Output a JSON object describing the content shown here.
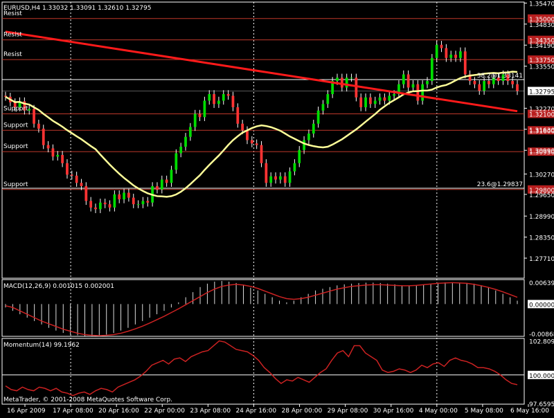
{
  "colors": {
    "background": "#000000",
    "frame": "#ffffff",
    "grid": "#ffffff",
    "bull": "#00dd00",
    "bear": "#ff3333",
    "wick": "#ffffff",
    "level_line": "#c0392b",
    "trendline": "#ff1a1a",
    "moving_average": "#ffff99",
    "macd_hist": "#dddddd",
    "macd_signal": "#cc2222",
    "momentum": "#cc2222",
    "label_text": "#ffffff",
    "level_label_bg": "#b81f1f",
    "current_price_bg": "#ffffff",
    "current_price_text": "#000000"
  },
  "chart_data": [
    {
      "type": "candlestick",
      "title": "EURUSD,H4  1.33032 1.33091 1.32610 1.32795",
      "ylim": [
        1.271,
        1.355
      ],
      "y_ticks": [
        "1.35470",
        "1.34830",
        "1.34190",
        "1.33550",
        "1.32795",
        "1.32270",
        "1.31630",
        "1.30990",
        "1.30270",
        "1.29650",
        "1.28990",
        "1.28350",
        "1.27710"
      ],
      "y_tick_values": [
        1.3547,
        1.3483,
        1.3419,
        1.3355,
        1.32795,
        1.3227,
        1.3163,
        1.3099,
        1.3027,
        1.2965,
        1.2899,
        1.2835,
        1.2771
      ],
      "current_price": "1.32795",
      "current_price_value": 1.32795,
      "horizontal_levels": [
        {
          "label": "Resist",
          "price_label": "1.35000",
          "value": 1.35
        },
        {
          "label": "Resist",
          "price_label": "1.34350",
          "value": 1.3435
        },
        {
          "label": "Resist",
          "price_label": "1.33750",
          "value": 1.3375
        },
        {
          "label": "Support",
          "price_label": "1.32100",
          "value": 1.321
        },
        {
          "label": "Support",
          "price_label": "1.31600",
          "value": 1.316
        },
        {
          "label": "Support",
          "price_label": "1.30950",
          "value": 1.3095
        },
        {
          "label": "Support",
          "price_label": "1.29800",
          "value": 1.298
        }
      ],
      "fib_levels": [
        {
          "label": "38.2@1.33141",
          "value": 1.33141
        },
        {
          "label": "23.6@1.29837",
          "value": 1.29837
        }
      ],
      "trendline": {
        "start": [
          0,
          1.346
        ],
        "end": [
          108,
          1.3218
        ]
      },
      "moving_average_label": "",
      "series": [
        {
          "name": "",
          "open": [
            1.3265,
            1.3262,
            1.3245,
            1.323,
            1.3248,
            1.322,
            1.3225,
            1.318,
            1.3165,
            1.3115,
            1.3105,
            1.308,
            1.3085,
            1.306,
            1.3025,
            1.3022,
            1.3,
            1.299,
            1.2945,
            1.2925,
            1.292,
            1.294,
            1.2935,
            1.2925,
            1.2965,
            1.295,
            1.297,
            1.2955,
            1.2935,
            1.2935,
            1.2945,
            1.294,
            1.299,
            1.298,
            1.301,
            1.3,
            1.304,
            1.309,
            1.311,
            1.314,
            1.317,
            1.321,
            1.32,
            1.325,
            1.327,
            1.324,
            1.325,
            1.327,
            1.3265,
            1.323,
            1.318,
            1.316,
            1.313,
            1.312,
            1.3115,
            1.306,
            1.3,
            1.302,
            1.301,
            1.302,
            1.3,
            1.3035,
            1.306,
            1.31,
            1.313,
            1.315,
            1.318,
            1.322,
            1.324,
            1.327,
            1.331,
            1.332,
            1.329,
            1.332,
            1.332,
            1.326,
            1.323,
            1.326,
            1.324,
            1.325,
            1.326,
            1.325,
            1.3265,
            1.327,
            1.33,
            1.333,
            1.329,
            1.33,
            1.325,
            1.33,
            1.331,
            1.338,
            1.342,
            1.341,
            1.338,
            1.339,
            1.338,
            1.34,
            1.333,
            1.331,
            1.33,
            1.328,
            1.331,
            1.33,
            1.332,
            1.331,
            1.333,
            1.331,
            1.33
          ],
          "close": [
            1.3262,
            1.3245,
            1.323,
            1.3248,
            1.322,
            1.3225,
            1.318,
            1.3165,
            1.3115,
            1.3105,
            1.308,
            1.3085,
            1.306,
            1.3025,
            1.3022,
            1.3,
            1.299,
            1.2945,
            1.2925,
            1.292,
            1.294,
            1.2935,
            1.2925,
            1.2965,
            1.295,
            1.297,
            1.2955,
            1.2935,
            1.2935,
            1.2945,
            1.294,
            1.299,
            1.298,
            1.301,
            1.3,
            1.304,
            1.309,
            1.311,
            1.314,
            1.317,
            1.321,
            1.32,
            1.325,
            1.327,
            1.324,
            1.325,
            1.327,
            1.3265,
            1.323,
            1.318,
            1.316,
            1.313,
            1.312,
            1.3115,
            1.306,
            1.3,
            1.302,
            1.301,
            1.302,
            1.3,
            1.3035,
            1.306,
            1.31,
            1.313,
            1.315,
            1.318,
            1.322,
            1.324,
            1.327,
            1.331,
            1.332,
            1.329,
            1.332,
            1.332,
            1.326,
            1.323,
            1.326,
            1.324,
            1.325,
            1.326,
            1.325,
            1.3265,
            1.327,
            1.33,
            1.333,
            1.329,
            1.33,
            1.325,
            1.33,
            1.331,
            1.338,
            1.342,
            1.341,
            1.338,
            1.339,
            1.338,
            1.34,
            1.333,
            1.331,
            1.33,
            1.328,
            1.331,
            1.33,
            1.332,
            1.331,
            1.333,
            1.331,
            1.33,
            1.32795
          ]
        }
      ]
    },
    {
      "type": "histogram",
      "title": "MACD(12,26,9) 0.001015 0.002001",
      "y_ticks": [
        "0.006391",
        "0.000000",
        "-0.008684"
      ],
      "y_tick_values": [
        0.006391,
        0.0,
        -0.008684
      ],
      "ylim": [
        -0.0095,
        0.0072
      ],
      "series": [
        {
          "name": "",
          "values": [
            -0.001,
            -0.002,
            -0.003,
            -0.004,
            -0.005,
            -0.006,
            -0.007,
            -0.0078,
            -0.0085,
            -0.009,
            -0.0092,
            -0.0094,
            -0.0094,
            -0.0093,
            -0.009,
            -0.0085,
            -0.0078,
            -0.007,
            -0.006,
            -0.005,
            -0.004,
            -0.003,
            -0.002,
            -0.001,
            0.0005,
            0.002,
            0.0035,
            0.005,
            0.006,
            0.0066,
            0.0068,
            0.0066,
            0.0062,
            0.0056,
            0.0048,
            0.004,
            0.003,
            0.002,
            0.001,
            0.0005,
            0.001,
            0.002,
            0.003,
            0.004,
            0.0045,
            0.005,
            0.0055,
            0.0058,
            0.006,
            0.0062,
            0.0063,
            0.0063,
            0.0062,
            0.006,
            0.0058,
            0.0055,
            0.0054,
            0.0056,
            0.0058,
            0.006,
            0.0063,
            0.0064,
            0.0064,
            0.0063,
            0.0062,
            0.006,
            0.0055,
            0.005,
            0.004,
            0.003,
            0.002,
            0.001
          ]
        },
        {
          "name": "",
          "values": [
            -0.0005,
            -0.001,
            -0.002,
            -0.003,
            -0.004,
            -0.005,
            -0.0058,
            -0.0066,
            -0.0074,
            -0.008,
            -0.0086,
            -0.009,
            -0.0092,
            -0.0093,
            -0.0092,
            -0.009,
            -0.0086,
            -0.008,
            -0.0073,
            -0.0065,
            -0.0056,
            -0.0046,
            -0.0036,
            -0.0025,
            -0.0014,
            -0.0002,
            0.001,
            0.0022,
            0.0034,
            0.0044,
            0.0052,
            0.0056,
            0.0058,
            0.0056,
            0.0052,
            0.0046,
            0.0038,
            0.003,
            0.0022,
            0.0016,
            0.0014,
            0.0016,
            0.002,
            0.0026,
            0.0032,
            0.0038,
            0.0044,
            0.0048,
            0.0052,
            0.0054,
            0.0056,
            0.0057,
            0.0057,
            0.0056,
            0.0055,
            0.0054,
            0.0054,
            0.0055,
            0.0057,
            0.0059,
            0.0061,
            0.0062,
            0.0063,
            0.0062,
            0.0061,
            0.0058,
            0.0054,
            0.0049,
            0.0043,
            0.0036,
            0.0028,
            0.002
          ]
        }
      ]
    },
    {
      "type": "line",
      "title": "Momentum(14) 99.1962",
      "y_ticks": [
        "102.809",
        "100.000",
        "97.6595"
      ],
      "y_tick_values": [
        102.809,
        100.0,
        97.6595
      ],
      "ylim": [
        97.6,
        103.0
      ],
      "series": [
        {
          "name": "",
          "values": [
            99.1,
            98.8,
            98.7,
            99.0,
            98.8,
            98.7,
            99.0,
            98.9,
            98.7,
            98.9,
            98.6,
            98.5,
            98.3,
            98.5,
            98.6,
            98.4,
            98.7,
            98.9,
            98.8,
            98.6,
            99.0,
            99.2,
            99.4,
            99.6,
            99.9,
            100.3,
            100.8,
            101.0,
            101.2,
            100.9,
            101.3,
            101.4,
            101.1,
            101.5,
            101.7,
            101.9,
            102.0,
            102.4,
            102.8,
            102.7,
            102.4,
            102.1,
            102.0,
            101.9,
            101.6,
            101.2,
            100.6,
            100.2,
            99.7,
            99.3,
            99.6,
            99.5,
            99.8,
            99.6,
            99.4,
            99.8,
            100.2,
            100.5,
            101.2,
            101.8,
            102.0,
            101.5,
            102.4,
            102.4,
            101.8,
            101.5,
            101.2,
            100.4,
            100.2,
            100.3,
            100.5,
            100.4,
            100.2,
            100.4,
            100.8,
            100.6,
            100.9,
            101.0,
            100.7,
            101.2,
            101.4,
            101.2,
            101.1,
            100.9,
            100.6,
            100.6,
            100.5,
            100.3,
            100.0,
            99.6,
            99.3,
            99.2
          ]
        }
      ]
    }
  ],
  "x_axis": {
    "labels": [
      "16 Apr 2009",
      "17 Apr 08:00",
      "20 Apr 16:00",
      "22 Apr 00:00",
      "23 Apr 08:00",
      "24 Apr 16:00",
      "28 Apr 00:00",
      "29 Apr 08:00",
      "30 Apr 16:00",
      "4 May 00:00",
      "5 May 08:00",
      "6 May 16:00"
    ],
    "separators_at_labels": [
      "17 Apr 08:00",
      "24 Apr 16:00",
      "4 May 00:00"
    ]
  },
  "copyright": "MetaTrader, © 2001-2008 MetaQuotes Software Corp."
}
